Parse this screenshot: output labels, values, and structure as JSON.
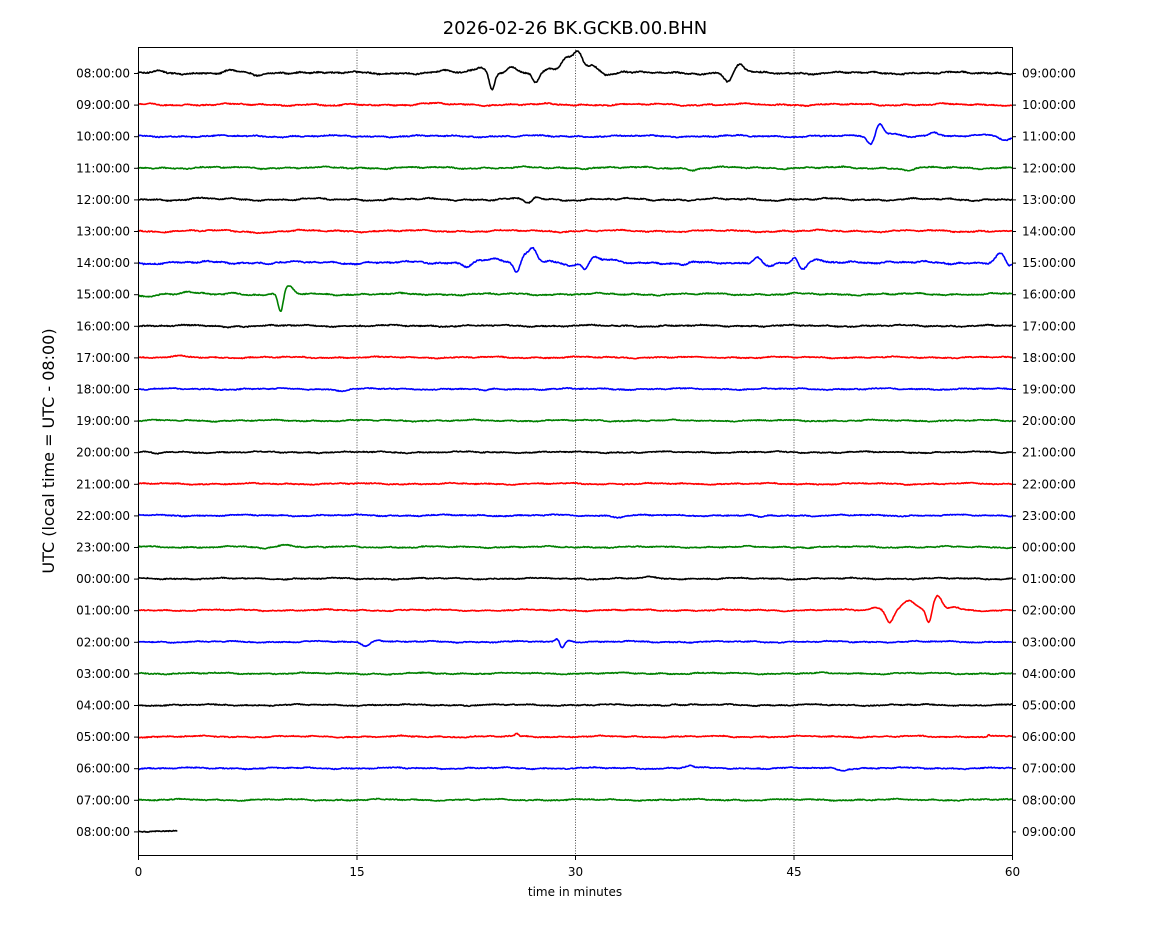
{
  "chart_data": {
    "type": "line",
    "title": "2026-02-26 BK.GCKB.00.BHN",
    "xlabel": "time in minutes",
    "ylabel": "UTC (local time = UTC - 08:00)",
    "xlim": [
      0,
      60
    ],
    "x_ticks": [
      "0",
      "15",
      "30",
      "45",
      "60"
    ],
    "x_tick_values": [
      0,
      15,
      30,
      45,
      60
    ],
    "vertical_gridlines_at": [
      15,
      30,
      45
    ],
    "colors_cycle": [
      "#000000",
      "#ff0000",
      "#0000ff",
      "#008000"
    ],
    "left_labels": [
      "08:00:00",
      "09:00:00",
      "10:00:00",
      "11:00:00",
      "12:00:00",
      "13:00:00",
      "14:00:00",
      "15:00:00",
      "16:00:00",
      "17:00:00",
      "18:00:00",
      "19:00:00",
      "20:00:00",
      "21:00:00",
      "22:00:00",
      "23:00:00",
      "00:00:00",
      "01:00:00",
      "02:00:00",
      "03:00:00",
      "04:00:00",
      "05:00:00",
      "06:00:00",
      "07:00:00",
      "08:00:00"
    ],
    "right_labels": [
      "09:00:00",
      "10:00:00",
      "11:00:00",
      "12:00:00",
      "13:00:00",
      "14:00:00",
      "15:00:00",
      "16:00:00",
      "17:00:00",
      "18:00:00",
      "19:00:00",
      "20:00:00",
      "21:00:00",
      "22:00:00",
      "23:00:00",
      "00:00:00",
      "01:00:00",
      "02:00:00",
      "03:00:00",
      "04:00:00",
      "05:00:00",
      "06:00:00",
      "07:00:00",
      "08:00:00",
      "09:00:00"
    ],
    "series": [
      {
        "row": 0,
        "color": "#000000",
        "noise": 0.6,
        "wander": 1.4,
        "events": [
          [
            1.5,
            -1.5,
            0.4
          ],
          [
            6.3,
            -2.5,
            0.5
          ],
          [
            8.2,
            2.5,
            0.5
          ],
          [
            11.2,
            -1.8,
            0.6
          ],
          [
            21.2,
            -1.8,
            0.5
          ],
          [
            22.8,
            -2.5,
            0.4
          ],
          [
            23.6,
            -5,
            0.5
          ],
          [
            24.3,
            16,
            0.25
          ],
          [
            25.6,
            -6,
            0.5
          ],
          [
            27.3,
            10,
            0.3
          ],
          [
            28.2,
            -3,
            0.5
          ],
          [
            29.4,
            -14,
            0.5
          ],
          [
            30.2,
            -22,
            0.45
          ],
          [
            31.2,
            -8,
            0.5
          ],
          [
            32.1,
            2,
            0.3
          ],
          [
            33.3,
            -1.5,
            0.4
          ],
          [
            40.5,
            9,
            0.35
          ],
          [
            41.3,
            -9,
            0.4
          ]
        ]
      },
      {
        "row": 1,
        "color": "#ff0000",
        "noise": 0.5,
        "wander": 1.2,
        "events": [
          [
            13.5,
            1.5,
            0.8
          ],
          [
            20.5,
            -1.0,
            0.8
          ]
        ]
      },
      {
        "row": 2,
        "color": "#0000ff",
        "noise": 0.5,
        "wander": 1.1,
        "events": [
          [
            50.3,
            8,
            0.35
          ],
          [
            50.9,
            -13,
            0.35
          ],
          [
            51.8,
            -3,
            0.6
          ],
          [
            54.6,
            -3,
            0.35
          ],
          [
            58.2,
            -2.5,
            0.7
          ],
          [
            59.6,
            4,
            0.5
          ]
        ]
      },
      {
        "row": 3,
        "color": "#008000",
        "noise": 0.5,
        "wander": 1.2,
        "events": [
          [
            38.0,
            2,
            0.5
          ],
          [
            53.0,
            2.5,
            0.6
          ]
        ]
      },
      {
        "row": 4,
        "color": "#000000",
        "noise": 0.5,
        "wander": 1.4,
        "events": [
          [
            4.5,
            -1.2,
            0.5
          ],
          [
            26.8,
            4,
            0.4
          ],
          [
            27.3,
            -2.5,
            0.4
          ]
        ]
      },
      {
        "row": 5,
        "color": "#ff0000",
        "noise": 0.5,
        "wander": 1.2,
        "events": [
          [
            8.5,
            2,
            0.6
          ]
        ]
      },
      {
        "row": 6,
        "color": "#0000ff",
        "noise": 0.6,
        "wander": 1.6,
        "events": [
          [
            22.6,
            3,
            0.4
          ],
          [
            23.5,
            -2.5,
            0.6
          ],
          [
            24.6,
            -3,
            0.5
          ],
          [
            26.0,
            10,
            0.3
          ],
          [
            26.5,
            -6,
            0.3
          ],
          [
            27.1,
            -14,
            0.4
          ],
          [
            28.4,
            -3,
            0.6
          ],
          [
            29.6,
            3,
            0.6
          ],
          [
            30.7,
            7,
            0.3
          ],
          [
            31.3,
            -6,
            0.4
          ],
          [
            32.4,
            -2,
            0.6
          ],
          [
            37.5,
            2.5,
            0.4
          ],
          [
            40.3,
            2,
            0.6
          ],
          [
            42.5,
            -7,
            0.35
          ],
          [
            43.3,
            3,
            0.5
          ],
          [
            45.1,
            -6,
            0.3
          ],
          [
            45.6,
            8,
            0.4
          ],
          [
            46.8,
            -2,
            0.6
          ],
          [
            49.5,
            -1.5,
            0.8
          ],
          [
            59.2,
            -9,
            0.4
          ],
          [
            59.8,
            5,
            0.3
          ]
        ]
      },
      {
        "row": 7,
        "color": "#008000",
        "noise": 0.5,
        "wander": 1.2,
        "events": [
          [
            0.8,
            2,
            0.5
          ],
          [
            3.4,
            -2,
            0.5
          ],
          [
            6.4,
            -2,
            0.4
          ],
          [
            9.8,
            20,
            0.25
          ],
          [
            10.3,
            -8,
            0.45
          ]
        ]
      },
      {
        "row": 8,
        "color": "#000000",
        "noise": 0.5,
        "wander": 1.0,
        "events": [
          [
            6.2,
            1.5,
            0.4
          ]
        ]
      },
      {
        "row": 9,
        "color": "#ff0000",
        "noise": 0.45,
        "wander": 0.9,
        "events": [
          [
            3.0,
            -1.2,
            0.5
          ]
        ]
      },
      {
        "row": 10,
        "color": "#0000ff",
        "noise": 0.45,
        "wander": 0.9,
        "events": [
          [
            13.9,
            1.5,
            0.5
          ],
          [
            23.7,
            2,
            0.5
          ]
        ]
      },
      {
        "row": 11,
        "color": "#008000",
        "noise": 0.45,
        "wander": 0.9,
        "events": []
      },
      {
        "row": 12,
        "color": "#000000",
        "noise": 0.45,
        "wander": 0.9,
        "events": [
          [
            1.3,
            1.5,
            0.5
          ]
        ]
      },
      {
        "row": 13,
        "color": "#ff0000",
        "noise": 0.45,
        "wander": 0.9,
        "events": []
      },
      {
        "row": 14,
        "color": "#0000ff",
        "noise": 0.45,
        "wander": 0.9,
        "events": [
          [
            33.0,
            1.5,
            0.5
          ],
          [
            42.7,
            2,
            0.5
          ]
        ]
      },
      {
        "row": 15,
        "color": "#008000",
        "noise": 0.45,
        "wander": 0.9,
        "events": [
          [
            8.6,
            2,
            0.4
          ],
          [
            10.2,
            -3,
            0.6
          ]
        ]
      },
      {
        "row": 16,
        "color": "#000000",
        "noise": 0.45,
        "wander": 0.9,
        "events": [
          [
            35.0,
            -1.5,
            0.5
          ]
        ]
      },
      {
        "row": 17,
        "color": "#ff0000",
        "noise": 0.45,
        "wander": 0.9,
        "events": [
          [
            50.6,
            -3,
            0.5
          ],
          [
            51.6,
            12,
            0.35
          ],
          [
            52.9,
            -10,
            0.6
          ],
          [
            54.3,
            14,
            0.25
          ],
          [
            54.9,
            -14,
            0.4
          ],
          [
            56.0,
            -2.5,
            0.6
          ]
        ]
      },
      {
        "row": 18,
        "color": "#0000ff",
        "noise": 0.45,
        "wander": 0.9,
        "events": [
          [
            15.6,
            4,
            0.4
          ],
          [
            16.4,
            -2,
            0.6
          ],
          [
            28.8,
            -3,
            0.2
          ],
          [
            29.1,
            6,
            0.2
          ],
          [
            29.6,
            -2,
            0.3
          ]
        ]
      },
      {
        "row": 19,
        "color": "#008000",
        "noise": 0.45,
        "wander": 0.9,
        "events": [
          [
            17.2,
            1.5,
            0.5
          ]
        ]
      },
      {
        "row": 20,
        "color": "#000000",
        "noise": 0.45,
        "wander": 0.9,
        "events": [
          [
            36.8,
            -1.2,
            0.4
          ]
        ]
      },
      {
        "row": 21,
        "color": "#ff0000",
        "noise": 0.45,
        "wander": 0.9,
        "events": [
          [
            26.0,
            -3,
            0.15
          ],
          [
            58.4,
            -1.5,
            0.1
          ]
        ]
      },
      {
        "row": 22,
        "color": "#0000ff",
        "noise": 0.45,
        "wander": 0.9,
        "events": [
          [
            37.9,
            -2.5,
            0.4
          ],
          [
            48.4,
            1.8,
            0.4
          ]
        ]
      },
      {
        "row": 23,
        "color": "#008000",
        "noise": 0.45,
        "wander": 0.9,
        "events": []
      },
      {
        "row": 24,
        "color": "#000000",
        "noise": 0.45,
        "wander": 0.5,
        "end_minute": 2.7,
        "events": []
      }
    ]
  }
}
